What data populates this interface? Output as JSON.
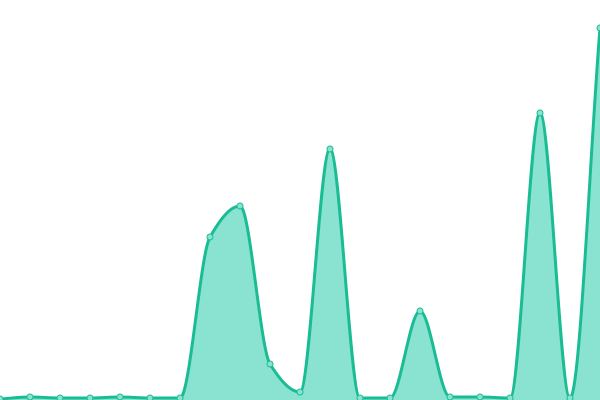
{
  "chart_data": {
    "type": "area",
    "title": "",
    "xlabel": "",
    "ylabel": "",
    "x": [
      0,
      1,
      2,
      3,
      4,
      5,
      6,
      7,
      8,
      9,
      10,
      11,
      12,
      13,
      14,
      15,
      16,
      17,
      18,
      19,
      20
    ],
    "series": [
      {
        "values": [
          1,
          3,
          2,
          2,
          3,
          2,
          2,
          163,
          194,
          36,
          8,
          251,
          2,
          2,
          89,
          3,
          3,
          2,
          287,
          2,
          372
        ]
      }
    ],
    "xlim": [
      0,
      20
    ],
    "ylim": [
      0,
      400
    ],
    "grid": false,
    "axes_visible": false,
    "colors": {
      "line": "#1abc94",
      "fill": "#8ae2d0",
      "point": "#8ae2d0"
    }
  }
}
